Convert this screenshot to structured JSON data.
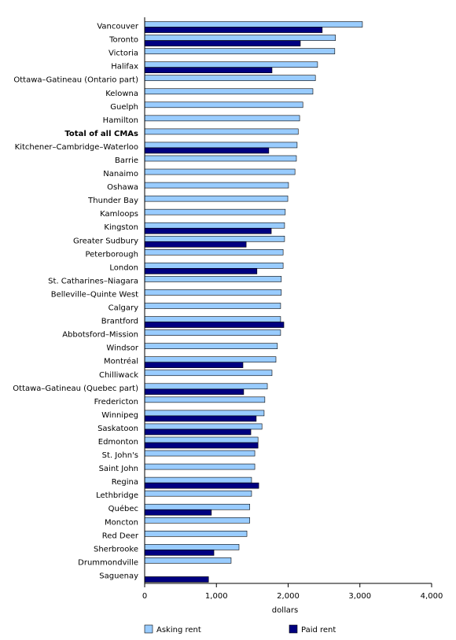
{
  "chart_data": {
    "type": "bar",
    "orientation": "horizontal",
    "categories": [
      "Vancouver",
      "Toronto",
      "Victoria",
      "Halifax",
      "Ottawa–Gatineau (Ontario part)",
      "Kelowna",
      "Guelph",
      "Hamilton",
      "Total of all CMAs",
      "Kitchener–Cambridge–Waterloo",
      "Barrie",
      "Nanaimo",
      "Oshawa",
      "Thunder Bay",
      "Kamloops",
      "Kingston",
      "Greater Sudbury",
      "Peterborough",
      "London",
      "St. Catharines–Niagara",
      "Belleville–Quinte West",
      "Calgary",
      "Brantford",
      "Abbotsford–Mission",
      "Windsor",
      "Montréal",
      "Chilliwack",
      "Ottawa–Gatineau (Quebec part)",
      "Fredericton",
      "Winnipeg",
      "Saskatoon",
      "Edmonton",
      "St. John's",
      "Saint John",
      "Regina",
      "Lethbridge",
      "Québec",
      "Moncton",
      "Red Deer",
      "Sherbrooke",
      "Drummondville",
      "Saguenay"
    ],
    "bold_category_index": 8,
    "series": [
      {
        "name": "Asking rent",
        "color": "#99ccff",
        "values": [
          3035,
          2660,
          2650,
          2410,
          2380,
          2345,
          2205,
          2160,
          2140,
          2125,
          2115,
          2095,
          2005,
          1995,
          1960,
          1950,
          1950,
          1930,
          1930,
          1905,
          1905,
          1895,
          1895,
          1895,
          1850,
          1830,
          1775,
          1710,
          1675,
          1665,
          1635,
          1580,
          1535,
          1535,
          1490,
          1490,
          1465,
          1465,
          1425,
          1315,
          1205,
          null
        ]
      },
      {
        "name": "Paid rent",
        "color": "#000080",
        "values": [
          2475,
          2170,
          null,
          1775,
          null,
          null,
          null,
          null,
          null,
          1730,
          null,
          null,
          null,
          null,
          null,
          1765,
          1415,
          null,
          1565,
          null,
          null,
          null,
          1940,
          null,
          null,
          1370,
          null,
          1380,
          null,
          1555,
          1480,
          1580,
          null,
          null,
          1590,
          null,
          930,
          null,
          null,
          965,
          null,
          890
        ]
      }
    ],
    "xlim": [
      0,
      4000
    ],
    "xticks": [
      0,
      {
        "value": 1000,
        "label": "1,000"
      },
      {
        "value": 2000,
        "label": "2,000"
      },
      {
        "value": 3000,
        "label": "3,000"
      },
      {
        "value": 4000,
        "label": "4,000"
      }
    ],
    "xlabel": "dollars"
  }
}
